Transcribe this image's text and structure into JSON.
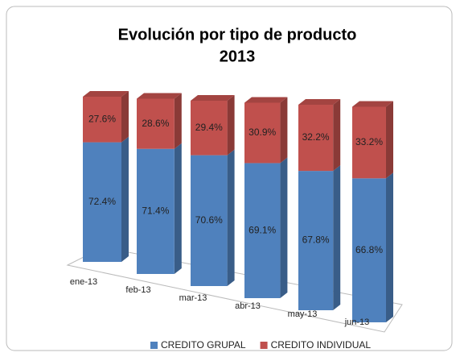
{
  "chart_data": {
    "type": "bar",
    "stacked": true,
    "title": [
      "Evolución por tipo de producto",
      "2013"
    ],
    "categories": [
      "ene-13",
      "feb-13",
      "mar-13",
      "abr-13",
      "may-13",
      "jun-13"
    ],
    "series": [
      {
        "name": "CREDITO GRUPAL",
        "color": "#4f81bd",
        "values": [
          72.4,
          71.4,
          70.6,
          69.1,
          67.8,
          66.8
        ],
        "value_labels": [
          "72.4%",
          "71.4%",
          "70.6%",
          "69.1%",
          "67.8%",
          "66.8%"
        ]
      },
      {
        "name": "CREDITO INDIVIDUAL",
        "color": "#c0504d",
        "values": [
          27.6,
          28.6,
          29.4,
          30.9,
          32.2,
          33.2
        ],
        "value_labels": [
          "27.6%",
          "28.6%",
          "29.4%",
          "30.9%",
          "32.2%",
          "33.2%"
        ]
      }
    ],
    "legend": "bottom"
  }
}
